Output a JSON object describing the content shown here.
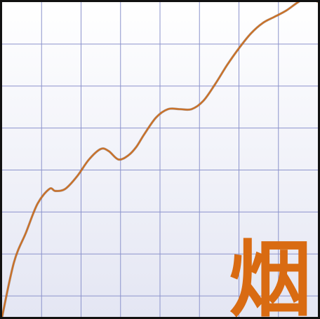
{
  "chart_data": {
    "type": "line",
    "title": "",
    "xlabel": "",
    "ylabel": "",
    "xlim": [
      0,
      8
    ],
    "ylim": [
      0,
      7.5
    ],
    "grid": true,
    "series": [
      {
        "color": "#cc6f22",
        "x": [
          0,
          0.3,
          0.6,
          0.9,
          1.2,
          1.35,
          1.6,
          1.9,
          2.2,
          2.5,
          2.7,
          2.95,
          3.2,
          3.4,
          3.6,
          3.9,
          4.2,
          4.5,
          4.8,
          5.1,
          5.4,
          5.7,
          6.0,
          6.3,
          6.6,
          6.9,
          7.2,
          7.5,
          7.8,
          8.0
        ],
        "y": [
          0,
          1.3,
          2.0,
          2.7,
          3.05,
          3.0,
          3.05,
          3.35,
          3.75,
          4.0,
          3.95,
          3.75,
          3.85,
          4.05,
          4.35,
          4.75,
          4.95,
          4.95,
          4.95,
          5.15,
          5.55,
          6.0,
          6.4,
          6.75,
          7.0,
          7.15,
          7.3,
          7.5,
          7.65,
          7.5
        ]
      }
    ]
  },
  "watermark": {
    "glyph": "烟",
    "color": "#d96b12"
  },
  "colors": {
    "background_top": "#ffffff",
    "background_bottom": "#e4e6f3",
    "grid": "#8c93cc",
    "border": "#111111"
  }
}
